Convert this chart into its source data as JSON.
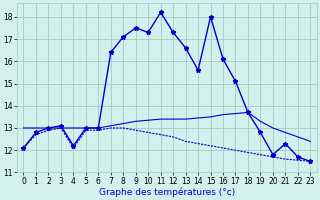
{
  "xlabel": "Graphe des températures (°c)",
  "background_color": "#d4f0ec",
  "grid_color": "#a0ccc4",
  "line_color": "#0000cc",
  "xlim": [
    -0.5,
    23.5
  ],
  "ylim": [
    11,
    18.6
  ],
  "yticks": [
    11,
    12,
    13,
    14,
    15,
    16,
    17,
    18
  ],
  "xticks": [
    0,
    1,
    2,
    3,
    4,
    5,
    6,
    7,
    8,
    9,
    10,
    11,
    12,
    13,
    14,
    15,
    16,
    17,
    18,
    19,
    20,
    21,
    22,
    23
  ],
  "series1_x": [
    0,
    1,
    2,
    3,
    4,
    5,
    6,
    7,
    8,
    9,
    10,
    11,
    12,
    13,
    14,
    15,
    16,
    17,
    18,
    19,
    20,
    21,
    22,
    23
  ],
  "series1_y": [
    12.1,
    12.8,
    13.0,
    13.1,
    12.2,
    13.0,
    13.0,
    16.4,
    17.1,
    17.5,
    17.3,
    18.2,
    17.3,
    16.6,
    15.6,
    18.0,
    16.1,
    15.1,
    13.7,
    12.8,
    11.8,
    12.3,
    11.7,
    11.5
  ],
  "series2_x": [
    0,
    1,
    2,
    3,
    4,
    5,
    6,
    7,
    8,
    9,
    10,
    11,
    12,
    13,
    14,
    15,
    16,
    17,
    18,
    19,
    20,
    21,
    22,
    23
  ],
  "series2_y": [
    13.0,
    13.0,
    13.0,
    13.0,
    13.0,
    13.0,
    13.0,
    13.1,
    13.2,
    13.3,
    13.35,
    13.4,
    13.4,
    13.4,
    13.45,
    13.5,
    13.6,
    13.65,
    13.7,
    13.3,
    13.0,
    12.8,
    12.6,
    12.4
  ],
  "series3_x": [
    0,
    1,
    2,
    3,
    4,
    5,
    6,
    7,
    8,
    9,
    10,
    11,
    12,
    13,
    14,
    15,
    16,
    17,
    18,
    19,
    20,
    21,
    22,
    23
  ],
  "series3_y": [
    12.1,
    12.7,
    12.9,
    13.0,
    12.1,
    12.9,
    12.9,
    13.0,
    13.0,
    12.9,
    12.8,
    12.7,
    12.6,
    12.4,
    12.3,
    12.2,
    12.1,
    12.0,
    11.9,
    11.8,
    11.7,
    11.6,
    11.55,
    11.5
  ]
}
